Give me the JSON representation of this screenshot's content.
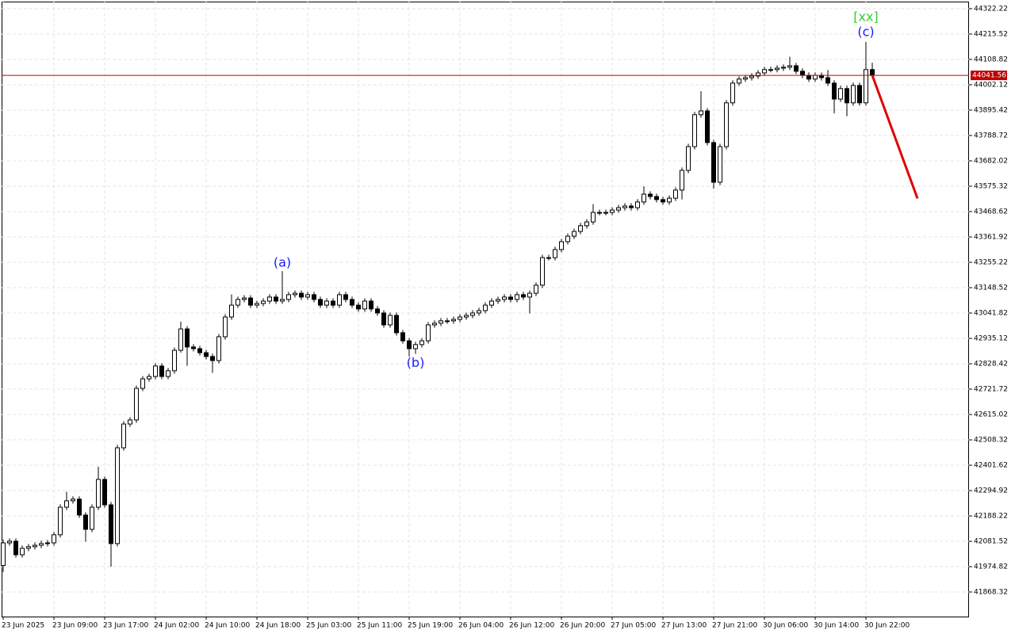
{
  "chart_data": {
    "type": "candlestick",
    "ylim": [
      41765,
      44352
    ],
    "yticks": [
      44322.22,
      44215.52,
      44108.82,
      44002.12,
      43895.42,
      43788.72,
      43682.02,
      43575.32,
      43468.62,
      43361.92,
      43255.22,
      43148.52,
      43041.82,
      42935.12,
      42828.42,
      42721.72,
      42615.02,
      42508.32,
      42401.62,
      42294.92,
      42188.22,
      42081.52,
      41974.82,
      41868.32
    ],
    "xticks": [
      {
        "value": 0,
        "label": "23 Jun 2025"
      },
      {
        "value": 8,
        "label": "23 Jun 09:00"
      },
      {
        "value": 16,
        "label": "23 Jun 17:00"
      },
      {
        "value": 24,
        "label": "24 Jun 02:00"
      },
      {
        "value": 32,
        "label": "24 Jun 10:00"
      },
      {
        "value": 40,
        "label": "24 Jun 18:00"
      },
      {
        "value": 48,
        "label": "25 Jun 03:00"
      },
      {
        "value": 56,
        "label": "25 Jun 11:00"
      },
      {
        "value": 64,
        "label": "25 Jun 19:00"
      },
      {
        "value": 72,
        "label": "26 Jun 04:00"
      },
      {
        "value": 80,
        "label": "26 Jun 12:00"
      },
      {
        "value": 88,
        "label": "26 Jun 20:00"
      },
      {
        "value": 96,
        "label": "27 Jun 05:00"
      },
      {
        "value": 104,
        "label": "27 Jun 13:00"
      },
      {
        "value": 112,
        "label": "27 Jun 21:00"
      },
      {
        "value": 120,
        "label": "30 Jun 06:00"
      },
      {
        "value": 128,
        "label": "30 Jun 14:00"
      },
      {
        "value": 136,
        "label": "30 Jun 22:00"
      }
    ],
    "grid": true,
    "up_color": "#ffffff",
    "down_color": "#000000",
    "price_line": {
      "value": 44041.56,
      "color": "#c00000"
    },
    "forecast": {
      "values": [
        44042,
        43524
      ],
      "color": "#e00000"
    },
    "annotations": [
      {
        "text": "(a)",
        "color": "#1a1aff"
      },
      {
        "text": "(b)",
        "color": "#1a1aff"
      },
      {
        "text": "(c)",
        "color": "#1a1aff"
      },
      {
        "text": "[xx]",
        "color": "#33cc33"
      }
    ],
    "candles": [
      [
        41980,
        42090,
        41952,
        42075
      ],
      [
        42075,
        42094,
        42063,
        42082
      ],
      [
        42082,
        42094,
        42013,
        42025
      ],
      [
        42025,
        42064,
        42013,
        42052
      ],
      [
        42052,
        42071,
        42040,
        42059
      ],
      [
        42059,
        42077,
        42047,
        42065
      ],
      [
        42065,
        42084,
        42053,
        42072
      ],
      [
        42072,
        42087,
        42060,
        42075
      ],
      [
        42075,
        42121,
        42063,
        42109
      ],
      [
        42109,
        42237,
        42097,
        42225
      ],
      [
        42225,
        42290,
        42213,
        42252
      ],
      [
        42252,
        42271,
        42240,
        42259
      ],
      [
        42259,
        42271,
        42180,
        42192
      ],
      [
        42192,
        42204,
        42080,
        42132
      ],
      [
        42132,
        42237,
        42120,
        42225
      ],
      [
        42225,
        42395,
        42213,
        42342
      ],
      [
        42342,
        42354,
        42223,
        42235
      ],
      [
        42235,
        42247,
        41975,
        42072
      ],
      [
        42072,
        42487,
        42060,
        42475
      ],
      [
        42475,
        42587,
        42463,
        42575
      ],
      [
        42575,
        42604,
        42563,
        42592
      ],
      [
        42592,
        42737,
        42580,
        42725
      ],
      [
        42725,
        42777,
        42713,
        42765
      ],
      [
        42765,
        42787,
        42753,
        42775
      ],
      [
        42775,
        42831,
        42763,
        42819
      ],
      [
        42819,
        42831,
        42763,
        42775
      ],
      [
        42775,
        42811,
        42763,
        42799
      ],
      [
        42799,
        42897,
        42787,
        42885
      ],
      [
        42885,
        43005,
        42875,
        42975
      ],
      [
        42975,
        42987,
        42820,
        42899
      ],
      [
        42899,
        42911,
        42880,
        42892
      ],
      [
        42892,
        42904,
        42863,
        42875
      ],
      [
        42875,
        42887,
        42847,
        42859
      ],
      [
        42859,
        42871,
        42790,
        42842
      ],
      [
        42842,
        42954,
        42830,
        42942
      ],
      [
        42942,
        43037,
        42930,
        43025
      ],
      [
        43025,
        43120,
        43013,
        43075
      ],
      [
        43075,
        43111,
        43063,
        43099
      ],
      [
        43099,
        43117,
        43087,
        43105
      ],
      [
        43105,
        43117,
        43063,
        43075
      ],
      [
        43075,
        43094,
        43063,
        43082
      ],
      [
        43082,
        43104,
        43070,
        43092
      ],
      [
        43092,
        43121,
        43080,
        43109
      ],
      [
        43109,
        43121,
        43080,
        43092
      ],
      [
        43092,
        43218,
        43080,
        43099
      ],
      [
        43099,
        43131,
        43087,
        43119
      ],
      [
        43119,
        43137,
        43107,
        43125
      ],
      [
        43125,
        43137,
        43097,
        43109
      ],
      [
        43109,
        43131,
        43097,
        43119
      ],
      [
        43119,
        43131,
        43087,
        43099
      ],
      [
        43099,
        43111,
        43063,
        43075
      ],
      [
        43075,
        43104,
        43063,
        43092
      ],
      [
        43092,
        43104,
        43063,
        43075
      ],
      [
        43075,
        43131,
        43063,
        43119
      ],
      [
        43119,
        43131,
        43087,
        43099
      ],
      [
        43099,
        43111,
        43063,
        43075
      ],
      [
        43075,
        43087,
        43047,
        43059
      ],
      [
        43059,
        43104,
        43047,
        43092
      ],
      [
        43092,
        43104,
        43047,
        43059
      ],
      [
        43059,
        43071,
        43030,
        43042
      ],
      [
        43042,
        43054,
        42980,
        42992
      ],
      [
        42992,
        43044,
        42980,
        43032
      ],
      [
        43032,
        43044,
        42947,
        42959
      ],
      [
        42959,
        42971,
        42913,
        42925
      ],
      [
        42925,
        42937,
        42859,
        42892
      ],
      [
        42892,
        42921,
        42870,
        42909
      ],
      [
        42909,
        42937,
        42897,
        42925
      ],
      [
        42925,
        43004,
        42913,
        42992
      ],
      [
        42992,
        43011,
        42980,
        42999
      ],
      [
        42999,
        43021,
        42987,
        43009
      ],
      [
        43009,
        43021,
        42997,
        43009
      ],
      [
        43009,
        43027,
        42997,
        43015
      ],
      [
        43015,
        43037,
        43003,
        43025
      ],
      [
        43025,
        43044,
        43013,
        43032
      ],
      [
        43032,
        43054,
        43020,
        43042
      ],
      [
        43042,
        43064,
        43030,
        43052
      ],
      [
        43052,
        43087,
        43040,
        43075
      ],
      [
        43075,
        43104,
        43063,
        43092
      ],
      [
        43092,
        43111,
        43080,
        43099
      ],
      [
        43099,
        43121,
        43087,
        43109
      ],
      [
        43109,
        43121,
        43087,
        43099
      ],
      [
        43099,
        43131,
        43087,
        43119
      ],
      [
        43119,
        43131,
        43097,
        43109
      ],
      [
        43109,
        43137,
        43040,
        43125
      ],
      [
        43125,
        43171,
        43113,
        43159
      ],
      [
        43159,
        43287,
        43147,
        43275
      ],
      [
        43275,
        43287,
        43263,
        43275
      ],
      [
        43275,
        43321,
        43263,
        43309
      ],
      [
        43309,
        43354,
        43297,
        43342
      ],
      [
        43342,
        43377,
        43330,
        43365
      ],
      [
        43365,
        43397,
        43353,
        43385
      ],
      [
        43385,
        43421,
        43373,
        43409
      ],
      [
        43409,
        43437,
        43397,
        43425
      ],
      [
        43425,
        43500,
        43413,
        43465
      ],
      [
        43465,
        43477,
        43453,
        43465
      ],
      [
        43465,
        43477,
        43453,
        43465
      ],
      [
        43465,
        43487,
        43453,
        43475
      ],
      [
        43475,
        43497,
        43463,
        43485
      ],
      [
        43485,
        43504,
        43473,
        43492
      ],
      [
        43492,
        43504,
        43473,
        43485
      ],
      [
        43485,
        43521,
        43473,
        43509
      ],
      [
        43509,
        43575,
        43497,
        43542
      ],
      [
        43542,
        43554,
        43520,
        43532
      ],
      [
        43532,
        43544,
        43507,
        43519
      ],
      [
        43519,
        43531,
        43497,
        43509
      ],
      [
        43509,
        43537,
        43497,
        43525
      ],
      [
        43525,
        43571,
        43513,
        43559
      ],
      [
        43559,
        43654,
        43520,
        43642
      ],
      [
        43642,
        43754,
        43630,
        43742
      ],
      [
        43742,
        43888,
        43730,
        43876
      ],
      [
        43876,
        43975,
        43864,
        43892
      ],
      [
        43892,
        43904,
        43747,
        43759
      ],
      [
        43759,
        43771,
        43565,
        43592
      ],
      [
        43592,
        43754,
        43580,
        43742
      ],
      [
        43742,
        43938,
        43730,
        43926
      ],
      [
        43926,
        44021,
        43914,
        44009
      ],
      [
        44009,
        44038,
        43997,
        44026
      ],
      [
        44026,
        44044,
        44014,
        44032
      ],
      [
        44032,
        44051,
        44020,
        44039
      ],
      [
        44039,
        44064,
        44027,
        44052
      ],
      [
        44052,
        44078,
        44040,
        44066
      ],
      [
        44066,
        44078,
        44054,
        44066
      ],
      [
        44066,
        44084,
        44054,
        44072
      ],
      [
        44072,
        44088,
        44060,
        44076
      ],
      [
        44076,
        44120,
        44064,
        44082
      ],
      [
        44082,
        44094,
        44047,
        44059
      ],
      [
        44059,
        44071,
        44030,
        44042
      ],
      [
        44042,
        44054,
        44014,
        44026
      ],
      [
        44026,
        44054,
        44014,
        44042
      ],
      [
        44042,
        44054,
        44020,
        44032
      ],
      [
        44032,
        44064,
        43997,
        44009
      ],
      [
        44009,
        44021,
        43882,
        43942
      ],
      [
        43942,
        43998,
        43930,
        43986
      ],
      [
        43986,
        43998,
        43870,
        43926
      ],
      [
        43926,
        44011,
        43914,
        43999
      ],
      [
        43999,
        44011,
        43914,
        43926
      ],
      [
        43926,
        44182,
        43914,
        44066
      ],
      [
        44066,
        44095,
        44030,
        44042
      ]
    ]
  }
}
